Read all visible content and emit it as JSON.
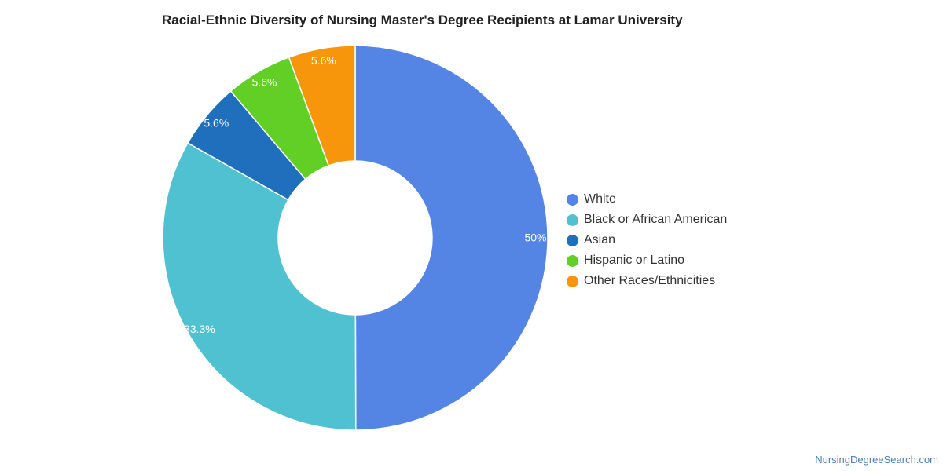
{
  "chart_data": {
    "type": "pie",
    "variant": "donut",
    "title": "Racial-Ethnic Diversity of Nursing Master's Degree Recipients at Lamar University",
    "legend_placement": "right",
    "slices": [
      {
        "label": "White",
        "value": 50,
        "display": "50%",
        "color": "#5484e4"
      },
      {
        "label": "Black or African American",
        "value": 33.3,
        "display": "33.3%",
        "color": "#50c1d0"
      },
      {
        "label": "Asian",
        "value": 5.6,
        "display": "5.6%",
        "color": "#1f6fbc"
      },
      {
        "label": "Hispanic or Latino",
        "value": 5.6,
        "display": "5.6%",
        "color": "#61cf26"
      },
      {
        "label": "Other Races/Ethnicities",
        "value": 5.6,
        "display": "5.6%",
        "color": "#f7960b"
      }
    ]
  },
  "footer": {
    "credit": "NursingDegreeSearch.com"
  }
}
